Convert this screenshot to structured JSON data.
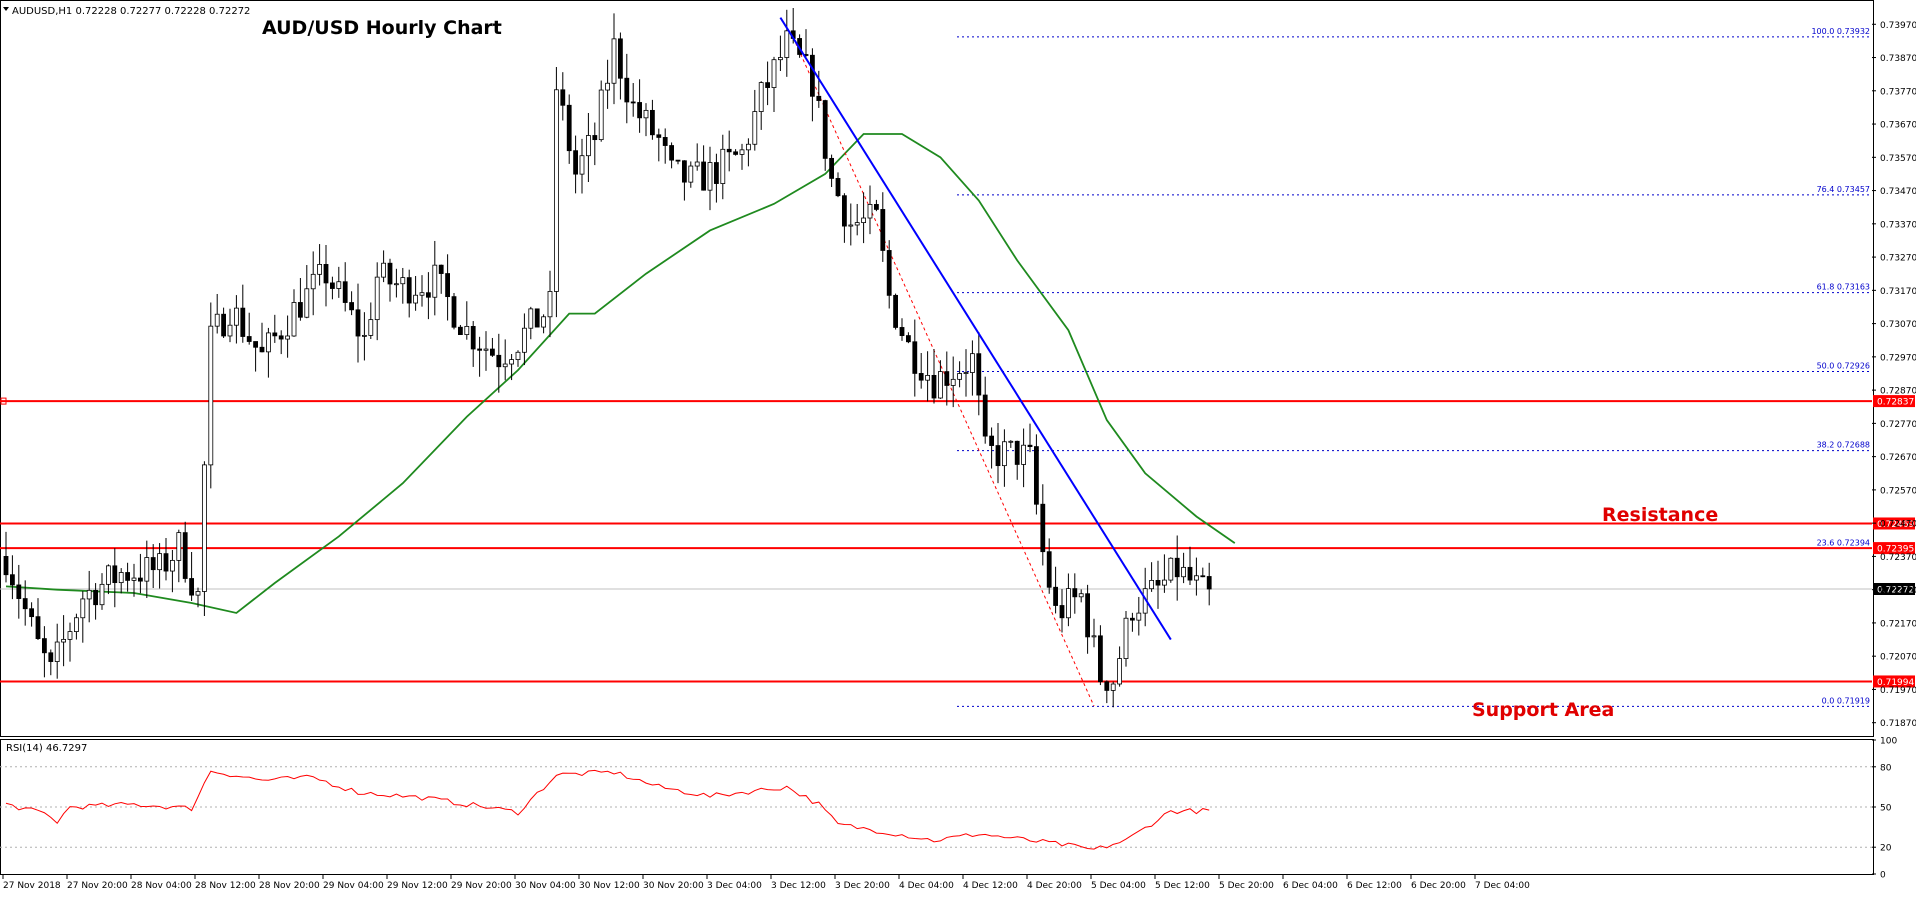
{
  "header": {
    "symbol_info": "AUDUSD,H1  0.72228 0.72277 0.72228 0.72272",
    "chart_title": "AUD/USD Hourly Chart"
  },
  "colors": {
    "background": "#ffffff",
    "bull_candle_body": "#ffffff",
    "bear_candle_body": "#000000",
    "candle_outline": "#000000",
    "moving_average": "#1f8a1f",
    "trend_line": "#0000ff",
    "fib_line": "#0000cc",
    "level_line": "#ff0000",
    "zigzag": "#ff0000",
    "rsi_line": "#ff0000",
    "annotation_text": "#e00000",
    "price_tag_bg": "#ff0000",
    "price_tag_text": "#ffffff",
    "current_tag_bg": "#000000"
  },
  "annotations": {
    "resistance": "Resistance",
    "support": "Support Area"
  },
  "rsi": {
    "label": "RSI(14) 46.7297",
    "axis_ticks": [
      "100",
      "80",
      "50",
      "20",
      "0"
    ]
  },
  "chart_data": [
    {
      "type": "candlestick",
      "title": "AUD/USD Hourly Chart",
      "ylim": [
        0.7183,
        0.7404
      ],
      "y_ticks": [
        "0.73970",
        "0.73870",
        "0.73770",
        "0.73670",
        "0.73570",
        "0.73470",
        "0.73370",
        "0.73270",
        "0.73170",
        "0.73070",
        "0.72970",
        "0.72870",
        "0.72770",
        "0.72670",
        "0.72570",
        "0.72470",
        "0.72370",
        "0.72270",
        "0.72170",
        "0.72070",
        "0.71970",
        "0.71870"
      ],
      "x_ticks": [
        "27 Nov 2018",
        "27 Nov 20:00",
        "28 Nov 04:00",
        "28 Nov 12:00",
        "28 Nov 20:00",
        "29 Nov 04:00",
        "29 Nov 12:00",
        "29 Nov 20:00",
        "30 Nov 04:00",
        "30 Nov 12:00",
        "30 Nov 20:00",
        "3 Dec 04:00",
        "3 Dec 12:00",
        "3 Dec 20:00",
        "4 Dec 04:00",
        "4 Dec 12:00",
        "4 Dec 20:00",
        "5 Dec 04:00",
        "5 Dec 12:00",
        "5 Dec 20:00",
        "6 Dec 04:00",
        "6 Dec 12:00",
        "6 Dec 20:00",
        "7 Dec 04:00"
      ],
      "candle_waypoints": [
        {
          "bar": 0,
          "price": 0.7237
        },
        {
          "bar": 5,
          "price": 0.721
        },
        {
          "bar": 7,
          "price": 0.7202
        },
        {
          "bar": 12,
          "price": 0.7225
        },
        {
          "bar": 18,
          "price": 0.7232
        },
        {
          "bar": 24,
          "price": 0.7233
        },
        {
          "bar": 27,
          "price": 0.724
        },
        {
          "bar": 30,
          "price": 0.7225
        },
        {
          "bar": 32,
          "price": 0.7302
        },
        {
          "bar": 35,
          "price": 0.7312
        },
        {
          "bar": 40,
          "price": 0.7297
        },
        {
          "bar": 45,
          "price": 0.7311
        },
        {
          "bar": 50,
          "price": 0.7322
        },
        {
          "bar": 53,
          "price": 0.7312
        },
        {
          "bar": 56,
          "price": 0.7302
        },
        {
          "bar": 58,
          "price": 0.7321
        },
        {
          "bar": 62,
          "price": 0.7318
        },
        {
          "bar": 67,
          "price": 0.732
        },
        {
          "bar": 72,
          "price": 0.7305
        },
        {
          "bar": 77,
          "price": 0.7297
        },
        {
          "bar": 80,
          "price": 0.7302
        },
        {
          "bar": 85,
          "price": 0.7312
        },
        {
          "bar": 86,
          "price": 0.7378
        },
        {
          "bar": 89,
          "price": 0.7352
        },
        {
          "bar": 92,
          "price": 0.7363
        },
        {
          "bar": 95,
          "price": 0.739
        },
        {
          "bar": 98,
          "price": 0.7372
        },
        {
          "bar": 102,
          "price": 0.7362
        },
        {
          "bar": 104,
          "price": 0.7352
        },
        {
          "bar": 107,
          "price": 0.735
        },
        {
          "bar": 110,
          "price": 0.7352
        },
        {
          "bar": 115,
          "price": 0.7358
        },
        {
          "bar": 118,
          "price": 0.7375
        },
        {
          "bar": 122,
          "price": 0.7391
        },
        {
          "bar": 126,
          "price": 0.738
        },
        {
          "bar": 129,
          "price": 0.735
        },
        {
          "bar": 132,
          "price": 0.7337
        },
        {
          "bar": 136,
          "price": 0.7338
        },
        {
          "bar": 138,
          "price": 0.7315
        },
        {
          "bar": 141,
          "price": 0.73
        },
        {
          "bar": 145,
          "price": 0.729
        },
        {
          "bar": 148,
          "price": 0.7293
        },
        {
          "bar": 151,
          "price": 0.7296
        },
        {
          "bar": 153,
          "price": 0.7268
        },
        {
          "bar": 158,
          "price": 0.7268
        },
        {
          "bar": 160,
          "price": 0.7266
        },
        {
          "bar": 162,
          "price": 0.7238
        },
        {
          "bar": 164,
          "price": 0.722
        },
        {
          "bar": 168,
          "price": 0.7225
        },
        {
          "bar": 171,
          "price": 0.7201
        },
        {
          "bar": 173,
          "price": 0.72
        },
        {
          "bar": 176,
          "price": 0.7222
        },
        {
          "bar": 180,
          "price": 0.7227
        },
        {
          "bar": 183,
          "price": 0.7233
        },
        {
          "bar": 187,
          "price": 0.7226
        },
        {
          "bar": 188,
          "price": 0.7227
        }
      ],
      "moving_average": [
        {
          "bar": 0,
          "value": 0.7228
        },
        {
          "bar": 8,
          "value": 0.7227
        },
        {
          "bar": 20,
          "value": 0.7226
        },
        {
          "bar": 29,
          "value": 0.7223
        },
        {
          "bar": 36,
          "value": 0.722
        },
        {
          "bar": 42,
          "value": 0.7229
        },
        {
          "bar": 52,
          "value": 0.7243
        },
        {
          "bar": 62,
          "value": 0.7259
        },
        {
          "bar": 72,
          "value": 0.7279
        },
        {
          "bar": 80,
          "value": 0.7293
        },
        {
          "bar": 88,
          "value": 0.731
        },
        {
          "bar": 92,
          "value": 0.731
        },
        {
          "bar": 100,
          "value": 0.7322
        },
        {
          "bar": 110,
          "value": 0.7335
        },
        {
          "bar": 120,
          "value": 0.7343
        },
        {
          "bar": 128,
          "value": 0.7352
        },
        {
          "bar": 134,
          "value": 0.7364
        },
        {
          "bar": 140,
          "value": 0.7364
        },
        {
          "bar": 146,
          "value": 0.7357
        },
        {
          "bar": 152,
          "value": 0.7344
        },
        {
          "bar": 158,
          "value": 0.7326
        },
        {
          "bar": 166,
          "value": 0.7305
        },
        {
          "bar": 172,
          "value": 0.7278
        },
        {
          "bar": 178,
          "value": 0.7262
        },
        {
          "bar": 186,
          "value": 0.7249
        },
        {
          "bar": 192,
          "value": 0.7241
        }
      ],
      "levels": [
        {
          "price": 0.72837,
          "label": "0.72837"
        },
        {
          "price": 0.72469,
          "label": "0.72469"
        },
        {
          "price": 0.72395,
          "label": "0.72395"
        },
        {
          "price": 0.71994,
          "label": "0.71994"
        }
      ],
      "current_price": {
        "price": 0.72272,
        "label": "0.72272"
      },
      "fibonacci": [
        {
          "price": 0.73932,
          "label": "100.0 0.73932"
        },
        {
          "price": 0.73457,
          "label": "76.4 0.73457"
        },
        {
          "price": 0.73163,
          "label": "61.8 0.73163"
        },
        {
          "price": 0.72926,
          "label": "50.0 0.72926"
        },
        {
          "price": 0.72688,
          "label": "38.2 0.72688"
        },
        {
          "price": 0.72394,
          "label": "23.6 0.72394"
        },
        {
          "price": 0.71919,
          "label": "0.0 0.71919"
        }
      ],
      "trend_line": [
        {
          "bar": 121,
          "price": 0.7399
        },
        {
          "bar": 182,
          "price": 0.7212
        }
      ],
      "zigzag": [
        {
          "bar": 123,
          "price": 0.7393
        },
        {
          "bar": 170,
          "price": 0.7192
        }
      ]
    },
    {
      "type": "line",
      "title": "RSI(14) 46.7297",
      "ylim": [
        0,
        100
      ],
      "y_ticks": [
        100,
        80,
        50,
        20,
        0
      ],
      "levels": [
        80,
        50,
        20
      ],
      "waypoints": [
        {
          "bar": 0,
          "value": 52
        },
        {
          "bar": 6,
          "value": 45
        },
        {
          "bar": 8,
          "value": 39
        },
        {
          "bar": 10,
          "value": 50
        },
        {
          "bar": 20,
          "value": 52
        },
        {
          "bar": 29,
          "value": 49
        },
        {
          "bar": 32,
          "value": 77
        },
        {
          "bar": 40,
          "value": 70
        },
        {
          "bar": 48,
          "value": 72
        },
        {
          "bar": 55,
          "value": 61
        },
        {
          "bar": 65,
          "value": 57
        },
        {
          "bar": 75,
          "value": 50
        },
        {
          "bar": 80,
          "value": 46
        },
        {
          "bar": 86,
          "value": 74
        },
        {
          "bar": 95,
          "value": 76
        },
        {
          "bar": 102,
          "value": 65
        },
        {
          "bar": 110,
          "value": 58
        },
        {
          "bar": 122,
          "value": 65
        },
        {
          "bar": 127,
          "value": 52
        },
        {
          "bar": 130,
          "value": 37
        },
        {
          "bar": 138,
          "value": 31
        },
        {
          "bar": 145,
          "value": 25
        },
        {
          "bar": 152,
          "value": 30
        },
        {
          "bar": 160,
          "value": 25
        },
        {
          "bar": 165,
          "value": 22
        },
        {
          "bar": 170,
          "value": 18
        },
        {
          "bar": 175,
          "value": 25
        },
        {
          "bar": 182,
          "value": 47
        },
        {
          "bar": 188,
          "value": 47
        }
      ]
    }
  ]
}
